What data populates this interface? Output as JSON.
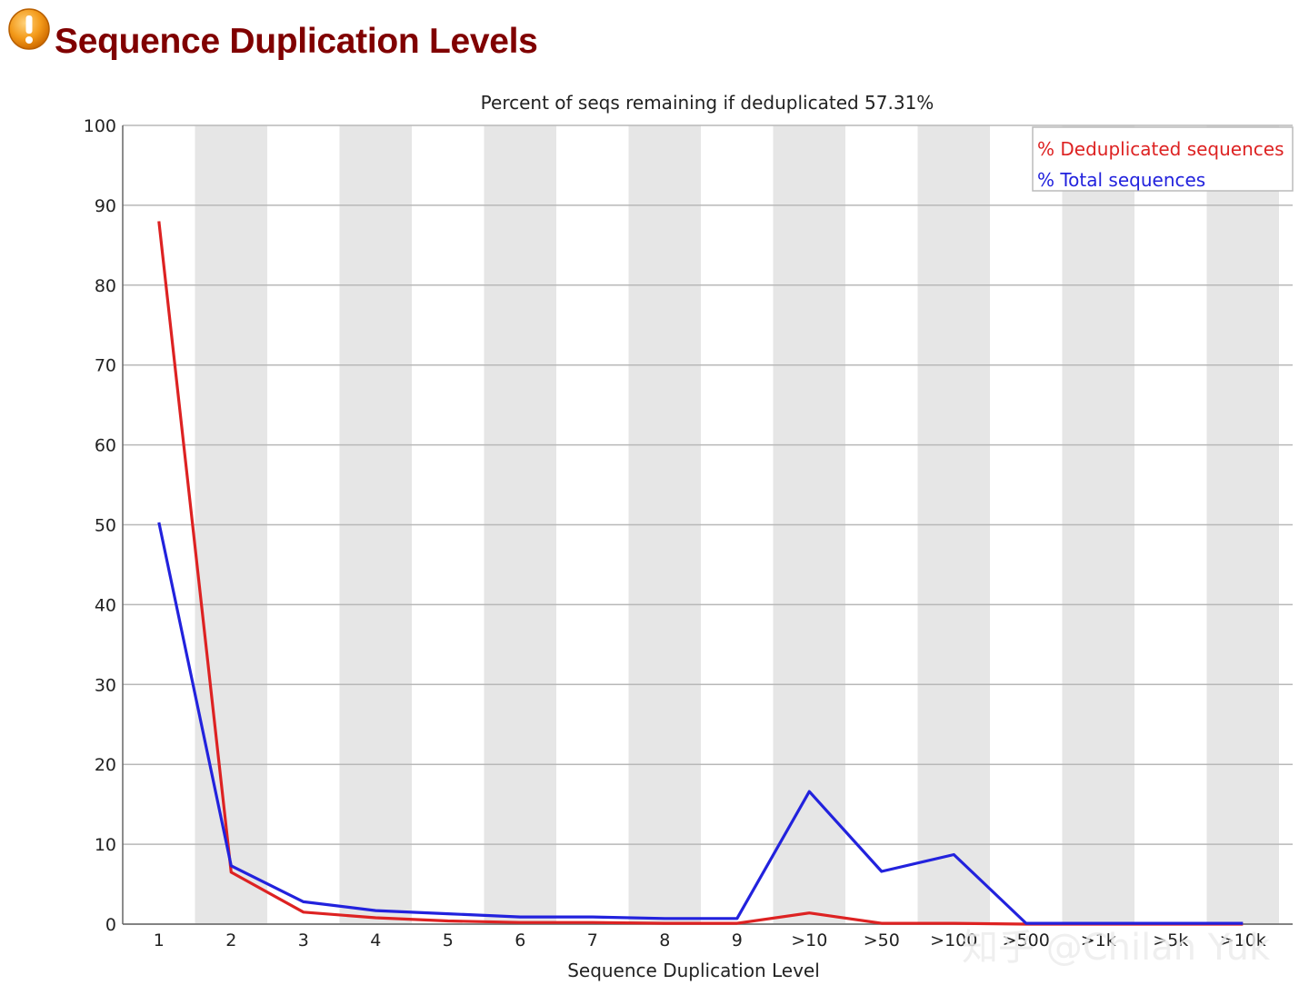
{
  "page": {
    "title": "Sequence Duplication Levels",
    "status_icon": "warning-icon"
  },
  "colors": {
    "title": "#800000",
    "dedup": "#dd2222",
    "total": "#2222dd",
    "band": "#e6e6e6",
    "grid": "#b8b8b8"
  },
  "chart_data": {
    "type": "line",
    "title": "Percent of seqs remaining if deduplicated 57.31%",
    "xlabel": "Sequence Duplication Level",
    "ylabel": "",
    "ylim": [
      0,
      100
    ],
    "yticks": [
      "0",
      "10",
      "20",
      "30",
      "40",
      "50",
      "60",
      "70",
      "80",
      "90",
      "100"
    ],
    "categories": [
      "1",
      "2",
      "3",
      "4",
      "5",
      "6",
      "7",
      "8",
      "9",
      ">10",
      ">50",
      ">100",
      ">500",
      ">1k",
      ">5k",
      ">10k"
    ],
    "series": [
      {
        "name": "% Deduplicated sequences",
        "color": "#dd2222",
        "values": [
          88,
          6.5,
          1.5,
          0.8,
          0.4,
          0.2,
          0.2,
          0.1,
          0.1,
          1.4,
          0.1,
          0.1,
          0.0,
          0.0,
          0.0,
          0.0
        ]
      },
      {
        "name": "% Total sequences",
        "color": "#2222dd",
        "values": [
          50.3,
          7.3,
          2.8,
          1.7,
          1.3,
          0.9,
          0.9,
          0.7,
          0.7,
          16.6,
          6.6,
          8.7,
          0.1,
          0.1,
          0.1,
          0.1
        ]
      }
    ],
    "grid": true,
    "alternating_bands": true,
    "legend_position": "top-right"
  },
  "watermark": "知乎 @Chilan Yuk"
}
